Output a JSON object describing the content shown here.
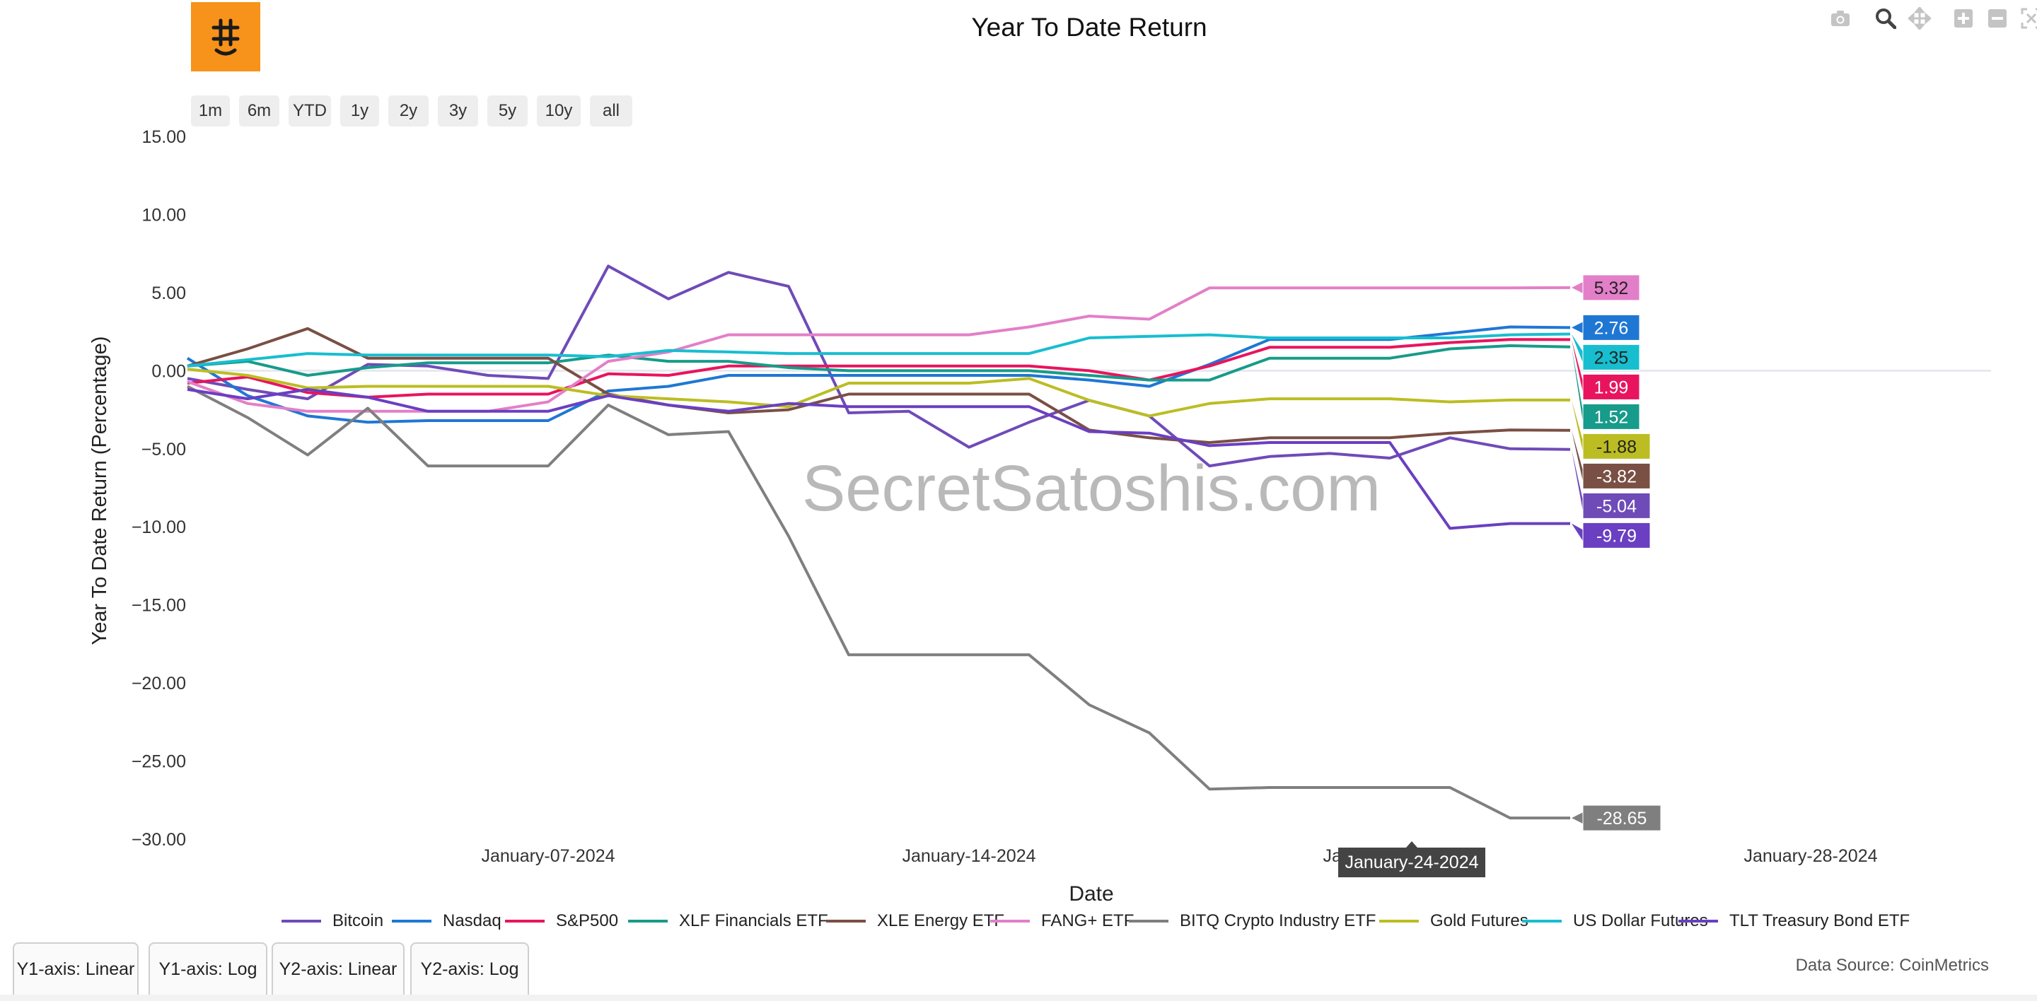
{
  "logo": {
    "icon": "bitcoin-smile-icon",
    "color": "#f7931a"
  },
  "modebar": {
    "icons": [
      "camera-icon",
      "zoom-icon",
      "pan-icon",
      "zoom-in-icon",
      "zoom-out-icon",
      "autoscale-icon",
      "reset-axes-icon",
      "plotly-logo-icon"
    ]
  },
  "range_buttons": [
    "1m",
    "6m",
    "YTD",
    "1y",
    "2y",
    "3y",
    "5y",
    "10y",
    "all"
  ],
  "axis_buttons": [
    "Y1-axis: Linear",
    "Y1-axis: Log",
    "Y2-axis: Linear",
    "Y2-axis: Log"
  ],
  "watermark": "SecretSatoshis.com",
  "source": "Data Source: CoinMetrics",
  "chart_data": {
    "type": "line",
    "title": "Year To Date Return",
    "xlabel": "Date",
    "ylabel": "Year To Date Return (Percentage)",
    "ylim": [
      -31.5,
      16.5
    ],
    "xlim": [
      "2024-01-01",
      "2024-01-31"
    ],
    "yticks": [
      "15.00",
      "10.00",
      "5.00",
      "0.00",
      "−5.00",
      "−10.00",
      "−15.00",
      "−20.00",
      "−25.00",
      "−30.00"
    ],
    "ytick_values": [
      15,
      10,
      5,
      0,
      -5,
      -10,
      -15,
      -20,
      -25,
      -30
    ],
    "xticks": [
      "January-07-2024",
      "January-14-2024",
      "January-21-2024",
      "January-28-2024"
    ],
    "xtick_values": [
      "2024-01-07",
      "2024-01-14",
      "2024-01-21",
      "2024-01-28"
    ],
    "hover_date": "January-24-2024",
    "grid": "zero-line only",
    "legend_position": "bottom",
    "x": [
      "2024-01-01",
      "2024-01-02",
      "2024-01-03",
      "2024-01-04",
      "2024-01-05",
      "2024-01-06",
      "2024-01-07",
      "2024-01-08",
      "2024-01-09",
      "2024-01-10",
      "2024-01-11",
      "2024-01-12",
      "2024-01-13",
      "2024-01-14",
      "2024-01-15",
      "2024-01-16",
      "2024-01-17",
      "2024-01-18",
      "2024-01-19",
      "2024-01-20",
      "2024-01-21",
      "2024-01-22",
      "2024-01-23",
      "2024-01-24"
    ],
    "series": [
      {
        "name": "Bitcoin",
        "color": "#6f4bb8",
        "end_label": "-5.04",
        "values": [
          -0.5,
          -1.2,
          -1.8,
          0.4,
          0.3,
          -0.3,
          -0.5,
          6.7,
          4.6,
          6.3,
          5.4,
          -2.7,
          -2.6,
          -4.9,
          -3.3,
          -1.9,
          -2.9,
          -6.1,
          -5.5,
          -5.3,
          -5.6,
          -4.3,
          -5.0,
          -5.04
        ]
      },
      {
        "name": "Nasdaq",
        "color": "#1f77d4",
        "end_label": "2.76",
        "values": [
          0.8,
          -1.6,
          -2.9,
          -3.3,
          -3.2,
          -3.2,
          -3.2,
          -1.3,
          -1.0,
          -0.3,
          -0.3,
          -0.3,
          -0.3,
          -0.3,
          -0.3,
          -0.6,
          -1.0,
          0.4,
          2.0,
          2.0,
          2.0,
          2.4,
          2.8,
          2.76
        ]
      },
      {
        "name": "S&P500",
        "color": "#e8145e",
        "end_label": "1.99",
        "values": [
          -0.8,
          -0.4,
          -1.4,
          -1.7,
          -1.5,
          -1.5,
          -1.5,
          -0.2,
          -0.3,
          0.3,
          0.3,
          0.3,
          0.3,
          0.3,
          0.3,
          0.0,
          -0.6,
          0.3,
          1.5,
          1.5,
          1.5,
          1.8,
          2.0,
          1.99
        ]
      },
      {
        "name": "XLF Financials ETF",
        "color": "#179b8a",
        "end_label": "1.52",
        "values": [
          0.3,
          0.6,
          -0.3,
          0.2,
          0.5,
          0.5,
          0.5,
          1.0,
          0.6,
          0.6,
          0.2,
          0.0,
          0.0,
          0.0,
          0.0,
          -0.3,
          -0.6,
          -0.6,
          0.8,
          0.8,
          0.8,
          1.4,
          1.6,
          1.52
        ]
      },
      {
        "name": "XLE Energy ETF",
        "color": "#7a4f44",
        "end_label": "-3.82",
        "values": [
          0.3,
          1.4,
          2.7,
          0.8,
          0.8,
          0.8,
          0.8,
          -1.5,
          -2.2,
          -2.7,
          -2.5,
          -1.5,
          -1.5,
          -1.5,
          -1.5,
          -3.8,
          -4.3,
          -4.6,
          -4.3,
          -4.3,
          -4.3,
          -4.0,
          -3.8,
          -3.82
        ]
      },
      {
        "name": "FANG+ ETF",
        "color": "#e37fc8",
        "end_label": "5.32",
        "values": [
          -0.7,
          -2.1,
          -2.6,
          -2.6,
          -2.6,
          -2.6,
          -2.0,
          0.6,
          1.2,
          2.3,
          2.3,
          2.3,
          2.3,
          2.3,
          2.8,
          3.5,
          3.3,
          5.3,
          5.3,
          5.3,
          5.3,
          5.3,
          5.3,
          5.32
        ]
      },
      {
        "name": "BITQ Crypto Industry ETF",
        "color": "#7f7f7f",
        "end_label": "-28.65",
        "values": [
          -1.0,
          -3.0,
          -5.4,
          -2.4,
          -6.1,
          -6.1,
          -6.1,
          -2.2,
          -4.1,
          -3.9,
          -10.6,
          -18.2,
          -18.2,
          -18.2,
          -18.2,
          -21.4,
          -23.2,
          -26.8,
          -26.7,
          -26.7,
          -26.7,
          -26.7,
          -28.65,
          -28.65
        ]
      },
      {
        "name": "Gold Futures",
        "color": "#bcbd22",
        "end_label": "-1.88",
        "values": [
          0.1,
          -0.3,
          -1.1,
          -1.0,
          -1.0,
          -1.0,
          -1.0,
          -1.6,
          -1.8,
          -2.0,
          -2.3,
          -0.8,
          -0.8,
          -0.8,
          -0.5,
          -1.9,
          -2.9,
          -2.1,
          -1.8,
          -1.8,
          -1.8,
          -2.0,
          -1.88,
          -1.88
        ]
      },
      {
        "name": "US Dollar Futures",
        "color": "#17becf",
        "end_label": "2.35",
        "values": [
          0.3,
          0.7,
          1.1,
          1.0,
          1.0,
          1.0,
          1.0,
          0.9,
          1.3,
          1.2,
          1.1,
          1.1,
          1.1,
          1.1,
          1.1,
          2.1,
          2.2,
          2.3,
          2.1,
          2.1,
          2.1,
          2.1,
          2.3,
          2.35
        ]
      },
      {
        "name": "TLT Treasury Bond ETF",
        "color": "#6a3fc1",
        "end_label": "-9.79",
        "values": [
          -1.2,
          -1.8,
          -1.2,
          -1.7,
          -2.6,
          -2.6,
          -2.6,
          -1.6,
          -2.2,
          -2.6,
          -2.1,
          -2.3,
          -2.3,
          -2.3,
          -2.3,
          -3.9,
          -4.0,
          -4.8,
          -4.6,
          -4.6,
          -4.6,
          -10.1,
          -9.79,
          -9.79
        ]
      }
    ]
  }
}
